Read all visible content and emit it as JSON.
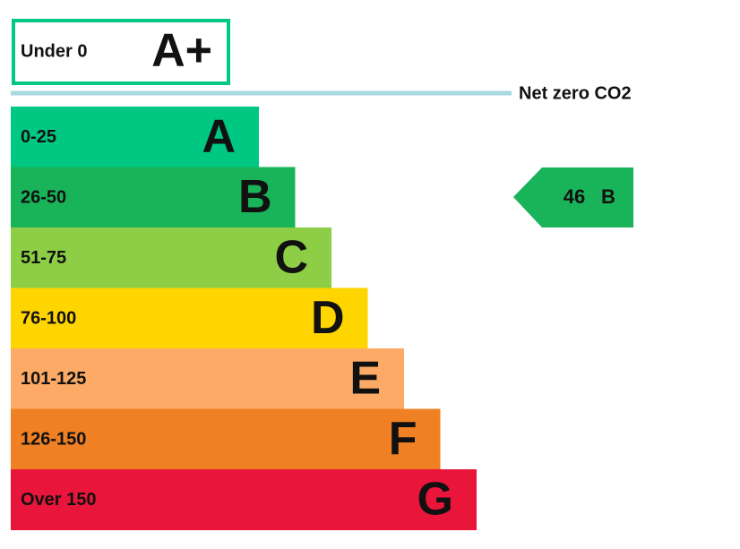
{
  "top": {
    "range": "Under 0",
    "rating": "A+",
    "color": "#00c781"
  },
  "net_zero": "Net zero CO2",
  "bands": [
    {
      "range": "0-25",
      "rating": "A",
      "color": "#00c781"
    },
    {
      "range": "26-50",
      "rating": "B",
      "color": "#19b459"
    },
    {
      "range": "51-75",
      "rating": "C",
      "color": "#8dce46"
    },
    {
      "range": "76-100",
      "rating": "D",
      "color": "#ffd500"
    },
    {
      "range": "101-125",
      "rating": "E",
      "color": "#fcaa65"
    },
    {
      "range": "126-150",
      "rating": "F",
      "color": "#ef8023"
    },
    {
      "range": "Over 150",
      "rating": "G",
      "color": "#e9153b"
    }
  ],
  "current": {
    "score": 46,
    "rating": "B",
    "color": "#19b459"
  }
}
